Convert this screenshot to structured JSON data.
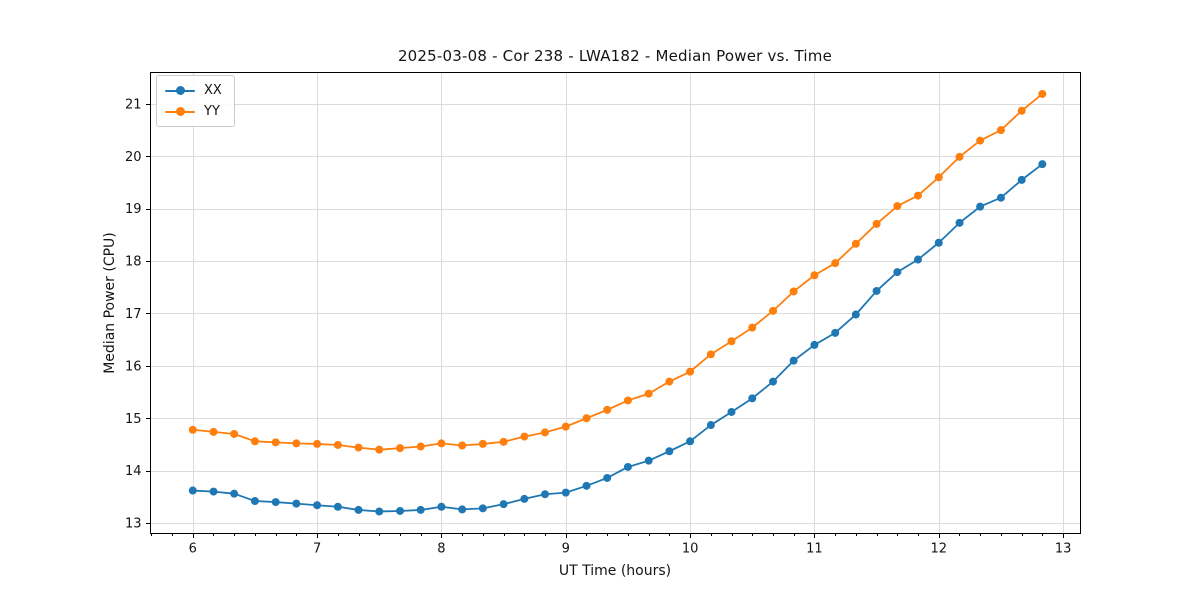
{
  "chart_data": {
    "type": "line",
    "title": "2025-03-08 - Cor 238 - LWA182 - Median Power vs. Time",
    "xlabel": "UT Time (hours)",
    "ylabel": "Median Power (CPU)",
    "xlim": [
      5.66,
      13.14
    ],
    "ylim": [
      12.8,
      21.6
    ],
    "xticks": [
      6,
      7,
      8,
      9,
      10,
      11,
      12,
      13
    ],
    "yticks": [
      13,
      14,
      15,
      16,
      17,
      18,
      19,
      20,
      21
    ],
    "x_minor_step": 0.1666667,
    "grid": true,
    "legend_position": "upper-left",
    "x": [
      6.0,
      6.167,
      6.333,
      6.5,
      6.667,
      6.833,
      7.0,
      7.167,
      7.333,
      7.5,
      7.667,
      7.833,
      8.0,
      8.167,
      8.333,
      8.5,
      8.667,
      8.833,
      9.0,
      9.167,
      9.333,
      9.5,
      9.667,
      9.833,
      10.0,
      10.167,
      10.333,
      10.5,
      10.667,
      10.833,
      11.0,
      11.167,
      11.333,
      11.5,
      11.667,
      11.833,
      12.0,
      12.167,
      12.333,
      12.5,
      12.667,
      12.833
    ],
    "series": [
      {
        "name": "XX",
        "color": "#1f77b4",
        "values": [
          13.62,
          13.6,
          13.56,
          13.42,
          13.4,
          13.37,
          13.34,
          13.31,
          13.25,
          13.22,
          13.23,
          13.25,
          13.31,
          13.26,
          13.28,
          13.36,
          13.46,
          13.55,
          13.58,
          13.71,
          13.86,
          14.07,
          14.19,
          14.37,
          14.56,
          14.87,
          15.12,
          15.38,
          15.7,
          16.1,
          16.4,
          16.63,
          16.98,
          17.43,
          17.79,
          18.03,
          18.35,
          18.73,
          19.04,
          19.21,
          19.55,
          19.85
        ]
      },
      {
        "name": "YY",
        "color": "#ff7f0e",
        "values": [
          14.78,
          14.74,
          14.7,
          14.56,
          14.54,
          14.52,
          14.51,
          14.49,
          14.44,
          14.4,
          14.43,
          14.46,
          14.52,
          14.48,
          14.51,
          14.55,
          14.65,
          14.73,
          14.84,
          15.0,
          15.16,
          15.34,
          15.47,
          15.7,
          15.89,
          16.22,
          16.47,
          16.73,
          17.05,
          17.42,
          17.73,
          17.96,
          18.33,
          18.71,
          19.05,
          19.25,
          19.6,
          19.99,
          20.3,
          20.5,
          20.87,
          21.19
        ]
      }
    ],
    "styles": {
      "grid_color": "#dcdcdc",
      "spine_color": "#000000",
      "text_color": "#141414",
      "marker_radius": 4,
      "line_width": 1.8
    }
  }
}
